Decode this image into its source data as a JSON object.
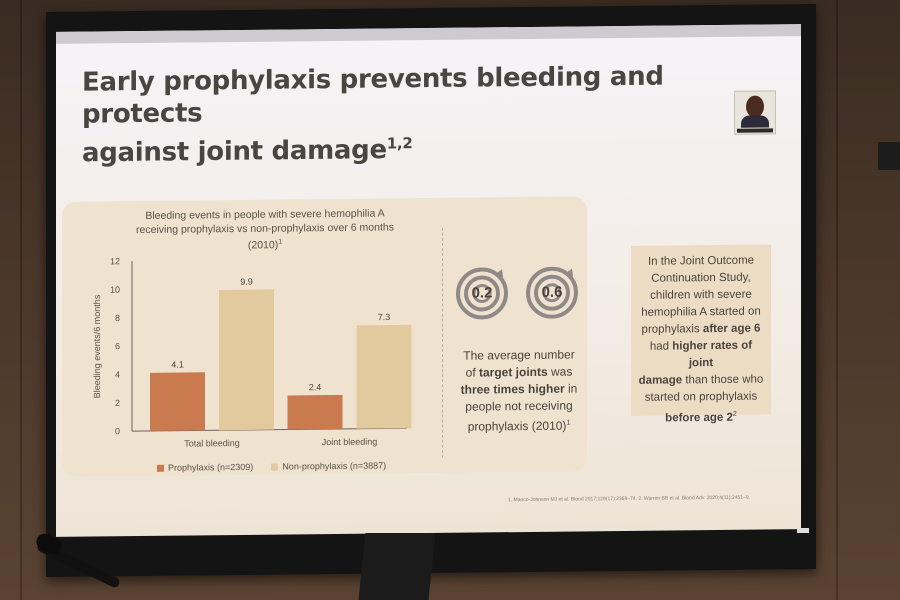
{
  "slide": {
    "title_line1": "Early prophylaxis prevents bleeding and protects",
    "title_line2": "against joint damage",
    "title_sup": "1,2"
  },
  "chart_data": {
    "type": "bar",
    "title_line1": "Bleeding events in people with severe hemophilia A",
    "title_line2": "receiving prophylaxis vs non-prophylaxis over 6 months",
    "title_line3": "(2010)",
    "title_sup": "1",
    "ylabel": "Bleeding events/6 months",
    "ylim": [
      0,
      12
    ],
    "yticks": [
      0,
      2,
      4,
      6,
      8,
      10,
      12
    ],
    "categories": [
      "Total bleeding",
      "Joint bleeding"
    ],
    "series": [
      {
        "name": "Prophylaxis (n=2309)",
        "values": [
          4.1,
          2.4
        ],
        "color": "#c97a4f"
      },
      {
        "name": "Non-prophylaxis (n=3887)",
        "values": [
          9.9,
          7.3
        ],
        "color": "#e3c99e"
      }
    ],
    "grid": false,
    "legend": "bottom"
  },
  "targets": {
    "left_value": "0.2",
    "right_value": "0.6",
    "text_1": "The average number",
    "text_2": "of ",
    "text_bold_1": "target joints",
    "text_3": " was",
    "text_bold_2": "three times higher",
    "text_4": " in",
    "text_5": "people not receiving",
    "text_6": "prophylaxis (2010)",
    "text_sup": "1",
    "icon_color": "#8f8a87"
  },
  "jocs": {
    "l1": "In the Joint Outcome",
    "l2": "Continuation Study,",
    "l3": "children with severe",
    "l4": "hemophilia A started on",
    "l5a": "prophylaxis ",
    "l5b": "after age 6",
    "l6a": "had ",
    "l6b": "higher rates of joint",
    "l7a": "damage",
    "l7b": " than those who",
    "l8": "started on prophylaxis",
    "l9": "before age 2",
    "sup": "2"
  },
  "footer": {
    "refs": "1. Manco-Johnson MJ et al. Blood 2017;129(17):2368–74. 2. Warren BB et al. Blood Adv. 2020;4(11):2451–9."
  },
  "colors": {
    "wall": "#4a372a",
    "slide_bg": "#f4efe9",
    "panel_bg": "#efe3cf",
    "title": "#4b4542"
  }
}
